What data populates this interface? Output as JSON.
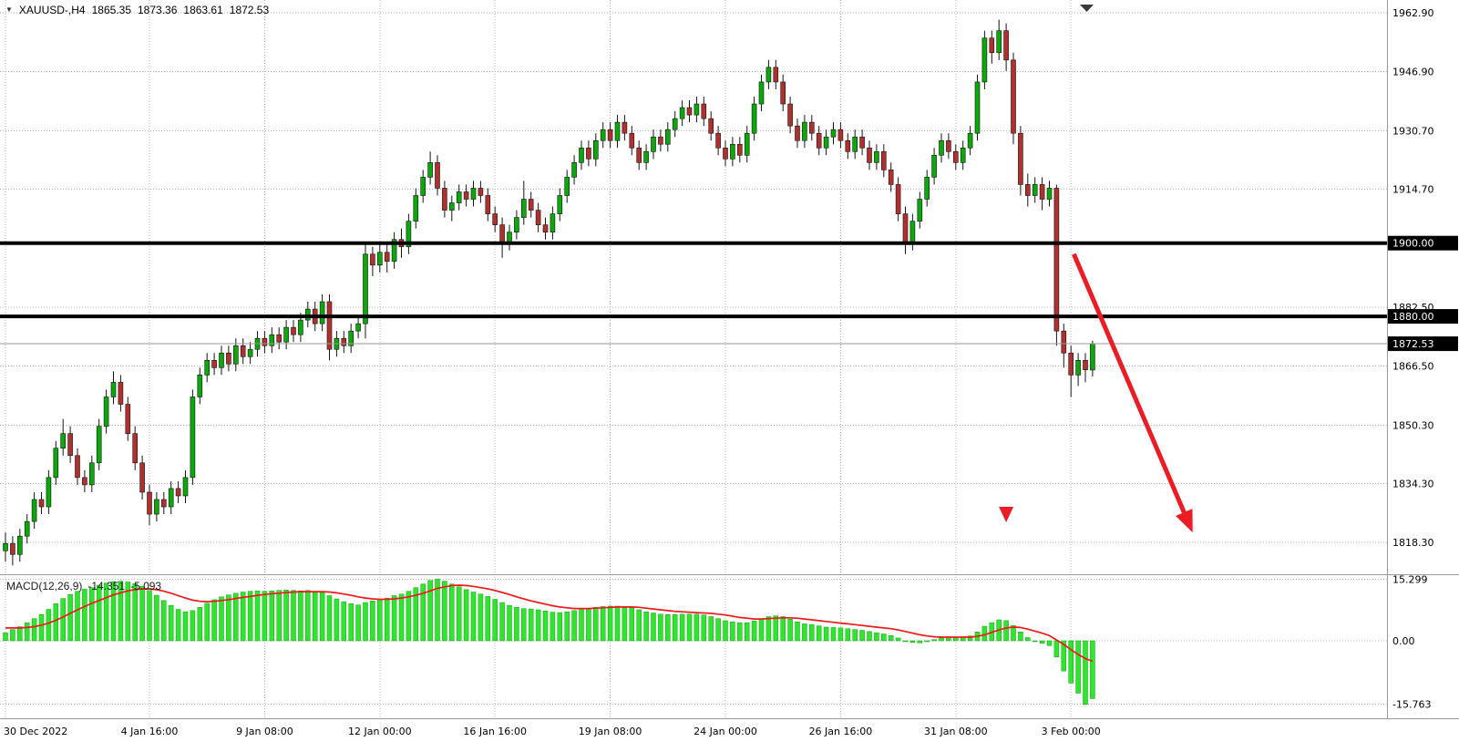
{
  "header": {
    "symbol_period": "XAUUSD-,H4",
    "open": "1865.35",
    "high": "1873.36",
    "low": "1863.61",
    "close": "1872.53"
  },
  "icons": {
    "expand_arrow": "▼",
    "shift_marker": "▼",
    "sell_signal": "▼"
  },
  "macd_panel": {
    "label": "MACD(12,26,9)",
    "macd_value": "-14.351",
    "signal_value": "-5.093",
    "ticks": [
      {
        "label": "15.299",
        "value": 15.299
      },
      {
        "label": "0.00",
        "value": 0
      },
      {
        "label": "-15.763",
        "value": -15.763
      }
    ]
  },
  "price_axis": {
    "ticks": [
      {
        "label": "1962.90",
        "value": 1962.9
      },
      {
        "label": "1946.90",
        "value": 1946.9
      },
      {
        "label": "1930.70",
        "value": 1930.7
      },
      {
        "label": "1914.70",
        "value": 1914.7
      },
      {
        "label": "1882.50",
        "value": 1882.5
      },
      {
        "label": "1866.50",
        "value": 1866.5
      },
      {
        "label": "1850.30",
        "value": 1850.3
      },
      {
        "label": "1834.30",
        "value": 1834.3
      },
      {
        "label": "1818.30",
        "value": 1818.3
      }
    ],
    "badges": [
      {
        "label": "1900.00",
        "value": 1900.0,
        "type": "hline"
      },
      {
        "label": "1880.00",
        "value": 1880.0,
        "type": "hline"
      },
      {
        "label": "1872.53",
        "value": 1872.53,
        "type": "current-price"
      }
    ]
  },
  "time_axis": [
    {
      "label": "30 Dec 2022",
      "index": 0
    },
    {
      "label": "4 Jan 16:00",
      "index": 20
    },
    {
      "label": "9 Jan 08:00",
      "index": 36
    },
    {
      "label": "12 Jan 00:00",
      "index": 52
    },
    {
      "label": "16 Jan 16:00",
      "index": 68
    },
    {
      "label": "19 Jan 08:00",
      "index": 84
    },
    {
      "label": "24 Jan 00:00",
      "index": 100
    },
    {
      "label": "26 Jan 16:00",
      "index": 116
    },
    {
      "label": "31 Jan 08:00",
      "index": 132
    },
    {
      "label": "3 Feb 00:00",
      "index": 148
    }
  ],
  "colors": {
    "background": "#ffffff",
    "bull": "#0aa80a",
    "bear": "#b03030",
    "wick": "#141414",
    "hist": "#2de62d",
    "hist_edge": "#16a016",
    "signal": "#f01818",
    "grid": "#b5b5b5",
    "hline": "#000000",
    "current_line": "#9a9a9a",
    "badge_bg": "#000000",
    "badge_fg": "#ffffff",
    "arrow": "#ec1c24",
    "border": "#9a9a9a"
  },
  "chart_data": {
    "type": "candlestick",
    "symbol": "XAUUSD-",
    "timeframe": "H4",
    "title": "XAUUSD-,H4 1865.35 1873.36 1863.61 1872.53",
    "price_range": {
      "min": 1818.3,
      "max": 1962.9
    },
    "hlines": [
      1900.0,
      1880.0
    ],
    "current_price": 1872.53,
    "last_candle": {
      "open": 1865.35,
      "high": 1873.36,
      "low": 1863.61,
      "close": 1872.53
    },
    "candles": [
      [
        1816,
        1821,
        1813,
        1818
      ],
      [
        1818,
        1820,
        1812,
        1815
      ],
      [
        1815,
        1822,
        1813,
        1820
      ],
      [
        1820,
        1826,
        1818,
        1824
      ],
      [
        1824,
        1832,
        1822,
        1830
      ],
      [
        1830,
        1832,
        1826,
        1828
      ],
      [
        1828,
        1838,
        1826,
        1836
      ],
      [
        1836,
        1846,
        1834,
        1844
      ],
      [
        1844,
        1852,
        1842,
        1848
      ],
      [
        1848,
        1850,
        1840,
        1842
      ],
      [
        1842,
        1844,
        1834,
        1836
      ],
      [
        1836,
        1838,
        1832,
        1834
      ],
      [
        1834,
        1842,
        1832,
        1840
      ],
      [
        1840,
        1852,
        1838,
        1850
      ],
      [
        1850,
        1860,
        1848,
        1858
      ],
      [
        1858,
        1865,
        1856,
        1862
      ],
      [
        1862,
        1864,
        1854,
        1856
      ],
      [
        1856,
        1858,
        1846,
        1848
      ],
      [
        1848,
        1850,
        1838,
        1840
      ],
      [
        1840,
        1842,
        1830,
        1832
      ],
      [
        1832,
        1834,
        1823,
        1826
      ],
      [
        1826,
        1832,
        1824,
        1830
      ],
      [
        1830,
        1832,
        1826,
        1828
      ],
      [
        1828,
        1835,
        1826,
        1833
      ],
      [
        1833,
        1835,
        1829,
        1831
      ],
      [
        1831,
        1838,
        1829,
        1836
      ],
      [
        1836,
        1860,
        1834,
        1858
      ],
      [
        1858,
        1866,
        1856,
        1864
      ],
      [
        1864,
        1870,
        1862,
        1868
      ],
      [
        1868,
        1870,
        1864,
        1866
      ],
      [
        1866,
        1872,
        1864,
        1870
      ],
      [
        1870,
        1872,
        1865,
        1867
      ],
      [
        1867,
        1874,
        1865,
        1872
      ],
      [
        1872,
        1874,
        1867,
        1869
      ],
      [
        1869,
        1873,
        1867,
        1871
      ],
      [
        1871,
        1876,
        1869,
        1874
      ],
      [
        1874,
        1876,
        1870,
        1872
      ],
      [
        1872,
        1877,
        1870,
        1875
      ],
      [
        1875,
        1877,
        1871,
        1873
      ],
      [
        1873,
        1879,
        1871,
        1877
      ],
      [
        1877,
        1879,
        1873,
        1875
      ],
      [
        1875,
        1881,
        1873,
        1879
      ],
      [
        1879,
        1884,
        1877,
        1882
      ],
      [
        1882,
        1884,
        1876,
        1878
      ],
      [
        1878,
        1886,
        1876,
        1884
      ],
      [
        1884,
        1886,
        1868,
        1871
      ],
      [
        1871,
        1876,
        1869,
        1874
      ],
      [
        1874,
        1876,
        1870,
        1872
      ],
      [
        1872,
        1878,
        1870,
        1876
      ],
      [
        1876,
        1880,
        1874,
        1878
      ],
      [
        1878,
        1900,
        1874,
        1897
      ],
      [
        1897,
        1899,
        1891,
        1894
      ],
      [
        1894,
        1900,
        1892,
        1897.5
      ],
      [
        1897.5,
        1900,
        1892,
        1895
      ],
      [
        1895,
        1903,
        1893,
        1901
      ],
      [
        1901,
        1904,
        1896,
        1899
      ],
      [
        1899,
        1908,
        1897,
        1906
      ],
      [
        1906,
        1915,
        1904,
        1913
      ],
      [
        1913,
        1920,
        1911,
        1918
      ],
      [
        1918,
        1925,
        1916,
        1922
      ],
      [
        1922,
        1924,
        1913,
        1915
      ],
      [
        1915,
        1917,
        1907,
        1909
      ],
      [
        1909,
        1913,
        1906,
        1911
      ],
      [
        1911,
        1916,
        1909,
        1914
      ],
      [
        1914,
        1916,
        1910,
        1912
      ],
      [
        1912,
        1917,
        1910,
        1915
      ],
      [
        1915,
        1917,
        1911,
        1913
      ],
      [
        1913,
        1915,
        1906,
        1908
      ],
      [
        1908,
        1910,
        1903,
        1905
      ],
      [
        1905,
        1907,
        1896,
        1900
      ],
      [
        1900,
        1905,
        1898,
        1903
      ],
      [
        1903,
        1909,
        1901,
        1907
      ],
      [
        1907,
        1917,
        1905,
        1912
      ],
      [
        1912,
        1914,
        1907,
        1909
      ],
      [
        1909,
        1911,
        1903,
        1905
      ],
      [
        1905,
        1907,
        1901,
        1903
      ],
      [
        1903,
        1910,
        1901,
        1908
      ],
      [
        1908,
        1915,
        1906,
        1913
      ],
      [
        1913,
        1920,
        1911,
        1918
      ],
      [
        1918,
        1924,
        1916,
        1922
      ],
      [
        1922,
        1928,
        1920,
        1926
      ],
      [
        1926,
        1928,
        1921,
        1923
      ],
      [
        1923,
        1930,
        1921,
        1928
      ],
      [
        1928,
        1933,
        1926,
        1931
      ],
      [
        1931,
        1933,
        1926,
        1928
      ],
      [
        1928,
        1935,
        1926,
        1933
      ],
      [
        1933,
        1935,
        1928,
        1930
      ],
      [
        1930,
        1932,
        1924,
        1926
      ],
      [
        1926,
        1928,
        1920,
        1922
      ],
      [
        1922,
        1927,
        1920,
        1925
      ],
      [
        1925,
        1931,
        1923,
        1929
      ],
      [
        1929,
        1931,
        1925,
        1927
      ],
      [
        1927,
        1933,
        1925,
        1931
      ],
      [
        1931,
        1936,
        1929,
        1934
      ],
      [
        1934,
        1939,
        1932,
        1937
      ],
      [
        1937,
        1939,
        1933,
        1935
      ],
      [
        1935,
        1940,
        1933,
        1938
      ],
      [
        1938,
        1940,
        1932,
        1934
      ],
      [
        1934,
        1936,
        1928,
        1930
      ],
      [
        1930,
        1932,
        1924,
        1926
      ],
      [
        1926,
        1928,
        1921,
        1923
      ],
      [
        1923,
        1929,
        1921,
        1927
      ],
      [
        1927,
        1929,
        1922,
        1924
      ],
      [
        1924,
        1932,
        1922,
        1930
      ],
      [
        1930,
        1940,
        1928,
        1938
      ],
      [
        1938,
        1946,
        1936,
        1944
      ],
      [
        1944,
        1950,
        1942,
        1948
      ],
      [
        1948,
        1950,
        1942,
        1944
      ],
      [
        1944,
        1946,
        1936,
        1938
      ],
      [
        1938,
        1940,
        1930,
        1932
      ],
      [
        1932,
        1934,
        1926,
        1928
      ],
      [
        1928,
        1935,
        1926,
        1933
      ],
      [
        1933,
        1935,
        1928,
        1930
      ],
      [
        1930,
        1932,
        1924,
        1926
      ],
      [
        1926,
        1931,
        1924,
        1929
      ],
      [
        1929,
        1933,
        1927,
        1931
      ],
      [
        1931,
        1933,
        1926,
        1928
      ],
      [
        1928,
        1930,
        1923,
        1925
      ],
      [
        1925,
        1931,
        1923,
        1929
      ],
      [
        1929,
        1931,
        1924,
        1926
      ],
      [
        1926,
        1928,
        1920,
        1922
      ],
      [
        1922,
        1927,
        1920,
        1925
      ],
      [
        1925,
        1927,
        1918,
        1920
      ],
      [
        1920,
        1922,
        1914,
        1916
      ],
      [
        1916,
        1918,
        1906,
        1908
      ],
      [
        1908,
        1910,
        1897,
        1900
      ],
      [
        1900,
        1908,
        1898,
        1906
      ],
      [
        1906,
        1914,
        1904,
        1912
      ],
      [
        1912,
        1920,
        1910,
        1918
      ],
      [
        1918,
        1926,
        1916,
        1924
      ],
      [
        1924,
        1930,
        1922,
        1928
      ],
      [
        1928,
        1930,
        1923,
        1925
      ],
      [
        1925,
        1927,
        1920,
        1922
      ],
      [
        1922,
        1928,
        1920,
        1926
      ],
      [
        1926,
        1932,
        1924,
        1930
      ],
      [
        1930,
        1946,
        1928,
        1944
      ],
      [
        1944,
        1958,
        1942,
        1956
      ],
      [
        1956,
        1958,
        1949,
        1952
      ],
      [
        1952,
        1961,
        1950,
        1958
      ],
      [
        1958,
        1960,
        1947,
        1950
      ],
      [
        1950,
        1952,
        1927,
        1930
      ],
      [
        1930,
        1932,
        1913,
        1916
      ],
      [
        1916,
        1919,
        1910,
        1913
      ],
      [
        1913,
        1918,
        1911,
        1916
      ],
      [
        1916,
        1918,
        1909,
        1912
      ],
      [
        1912,
        1917,
        1910,
        1915
      ],
      [
        1915,
        1916,
        1872,
        1876
      ],
      [
        1876,
        1878,
        1866,
        1870
      ],
      [
        1870,
        1872,
        1858,
        1864
      ],
      [
        1864,
        1870,
        1861,
        1868
      ],
      [
        1868,
        1870,
        1862,
        1865.4
      ],
      [
        1865.35,
        1873.36,
        1863.61,
        1872.53
      ]
    ],
    "macd": {
      "label": "MACD(12,26,9)",
      "values": {
        "macd": -14.351,
        "signal": -5.093
      },
      "range": [
        -15.763,
        15.299
      ],
      "histogram": [
        2.0,
        2.8,
        3.5,
        4.5,
        5.5,
        6.5,
        7.8,
        9.2,
        10.5,
        11.5,
        12.3,
        12.8,
        13.2,
        13.8,
        14.3,
        14.7,
        14.8,
        14.6,
        14.2,
        13.5,
        12.5,
        11.3,
        10.0,
        8.8,
        7.8,
        7.2,
        7.5,
        8.3,
        9.3,
        10.2,
        10.9,
        11.4,
        11.8,
        12.1,
        12.3,
        12.4,
        12.3,
        12.4,
        12.5,
        12.6,
        12.5,
        12.4,
        12.5,
        12.2,
        12.0,
        11.2,
        10.4,
        9.7,
        9.2,
        8.9,
        9.5,
        9.9,
        10.3,
        10.6,
        11.2,
        11.6,
        12.3,
        13.2,
        14.1,
        15.0,
        15.299,
        14.8,
        14.1,
        13.4,
        12.7,
        12.1,
        11.6,
        11.0,
        10.3,
        9.5,
        8.8,
        8.3,
        8.0,
        7.9,
        7.7,
        7.4,
        7.1,
        7.0,
        7.2,
        7.5,
        7.9,
        8.1,
        8.3,
        8.5,
        8.6,
        8.6,
        8.5,
        8.2,
        7.7,
        7.2,
        6.9,
        6.6,
        6.5,
        6.5,
        6.6,
        6.6,
        6.6,
        6.4,
        6.0,
        5.5,
        5.0,
        4.7,
        4.5,
        4.5,
        4.9,
        5.5,
        6.0,
        6.2,
        6.0,
        5.4,
        4.7,
        4.2,
        4.0,
        3.7,
        3.4,
        3.3,
        3.2,
        3.0,
        2.8,
        2.6,
        2.3,
        2.0,
        1.7,
        1.3,
        0.7,
        0.0,
        -0.4,
        -0.5,
        -0.2,
        0.3,
        0.7,
        0.9,
        0.8,
        0.9,
        1.2,
        2.2,
        3.6,
        4.5,
        5.2,
        5.0,
        3.8,
        2.2,
        0.8,
        0.0,
        -0.6,
        -1.2,
        -4.0,
        -7.5,
        -10.5,
        -13.0,
        -15.763,
        -14.351
      ],
      "signal": [
        3.2,
        3.2,
        3.2,
        3.3,
        3.5,
        3.9,
        4.4,
        5.1,
        5.9,
        6.8,
        7.7,
        8.5,
        9.3,
        10.0,
        10.7,
        11.4,
        11.9,
        12.4,
        12.7,
        12.9,
        12.9,
        12.7,
        12.3,
        11.8,
        11.2,
        10.6,
        10.1,
        9.8,
        9.7,
        9.8,
        10.0,
        10.2,
        10.5,
        10.8,
        11.0,
        11.3,
        11.5,
        11.7,
        11.8,
        12.0,
        12.1,
        12.2,
        12.2,
        12.2,
        12.2,
        12.1,
        11.9,
        11.6,
        11.3,
        10.9,
        10.6,
        10.4,
        10.3,
        10.3,
        10.4,
        10.6,
        10.9,
        11.3,
        11.8,
        12.4,
        13.0,
        13.4,
        13.7,
        13.8,
        13.7,
        13.5,
        13.2,
        12.9,
        12.5,
        12.0,
        11.5,
        10.9,
        10.4,
        9.9,
        9.5,
        9.1,
        8.7,
        8.4,
        8.2,
        8.0,
        8.0,
        8.0,
        8.1,
        8.2,
        8.3,
        8.4,
        8.4,
        8.4,
        8.3,
        8.1,
        7.9,
        7.7,
        7.5,
        7.3,
        7.2,
        7.1,
        7.0,
        6.9,
        6.8,
        6.6,
        6.4,
        6.1,
        5.8,
        5.6,
        5.4,
        5.4,
        5.5,
        5.6,
        5.7,
        5.7,
        5.6,
        5.4,
        5.2,
        5.0,
        4.8,
        4.6,
        4.4,
        4.2,
        4.0,
        3.8,
        3.6,
        3.4,
        3.2,
        3.0,
        2.7,
        2.3,
        1.9,
        1.5,
        1.2,
        1.0,
        0.9,
        0.9,
        0.9,
        0.9,
        0.9,
        1.1,
        1.5,
        2.1,
        2.7,
        3.2,
        3.4,
        3.3,
        2.9,
        2.4,
        1.9,
        1.3,
        0.2,
        -0.9,
        -2.2,
        -3.4,
        -4.4,
        -5.093
      ]
    },
    "annotations": {
      "sell_marker": {
        "index": 139,
        "price": 1828
      },
      "trend_arrow": {
        "from": {
          "index": 148.4,
          "price": 1897
        },
        "to": {
          "index": 164.9,
          "price": 1821
        }
      }
    }
  }
}
